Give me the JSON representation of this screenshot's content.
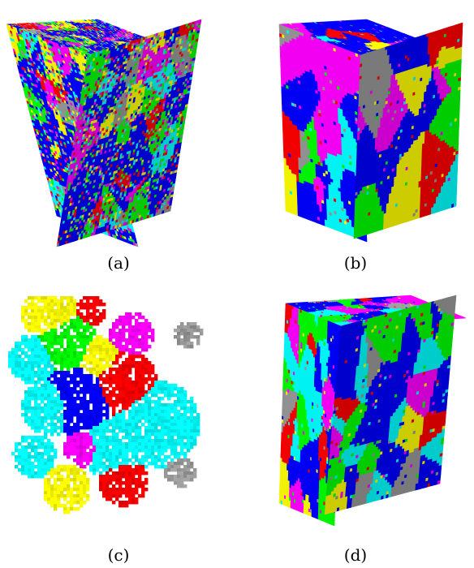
{
  "panels": [
    {
      "id": "a",
      "caption": "(a)"
    },
    {
      "id": "b",
      "caption": "(b)"
    },
    {
      "id": "c",
      "caption": "(c)"
    },
    {
      "id": "d",
      "caption": "(d)"
    }
  ],
  "palette": [
    "#0000ff",
    "#ff00ff",
    "#00ff00",
    "#ffff00",
    "#ff0000",
    "#00ffff",
    "#999999",
    "#222222"
  ]
}
